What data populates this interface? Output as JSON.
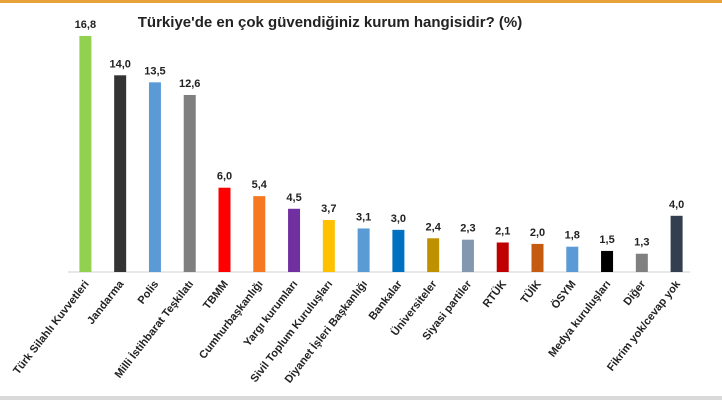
{
  "chart_data": {
    "type": "bar",
    "title": "Türkiye'de en çok güvendiğiniz kurum hangisidir? (%)",
    "categories": [
      "Türk Silahlı Kuvvetleri",
      "Jandarma",
      "Polis",
      "Milli İstihbarat Teşkilatı",
      "TBMM",
      "Cumhurbaşkanlığı",
      "Yargı kurumları",
      "Sivil Toplum Kuruluşları",
      "Diyanet İşleri Başkanlığı",
      "Bankalar",
      "Üniversiteler",
      "Siyasi partiler",
      "RTÜK",
      "TÜİK",
      "ÖSYM",
      "Medya kuruluşları",
      "Diğer",
      "Fikrim yok/cevap yok"
    ],
    "values": [
      16.8,
      14.0,
      13.5,
      12.6,
      6.0,
      5.4,
      4.5,
      3.7,
      3.1,
      3.0,
      2.4,
      2.3,
      2.1,
      2.0,
      1.8,
      1.5,
      1.3,
      4.0
    ],
    "value_labels": [
      "16,8",
      "14,0",
      "13,5",
      "12,6",
      "6,0",
      "5,4",
      "4,5",
      "3,7",
      "3,1",
      "3,0",
      "2,4",
      "2,3",
      "2,1",
      "2,0",
      "1,8",
      "1,5",
      "1,3",
      "4,0"
    ],
    "colors": [
      "#92d050",
      "#333333",
      "#5b9bd5",
      "#7f7f7f",
      "#ff0000",
      "#f47920",
      "#7030a0",
      "#ffc000",
      "#5b9bd5",
      "#0070c0",
      "#bf9000",
      "#8497b0",
      "#c00000",
      "#c55a11",
      "#5b9bd5",
      "#000000",
      "#808080",
      "#333f50"
    ]
  }
}
